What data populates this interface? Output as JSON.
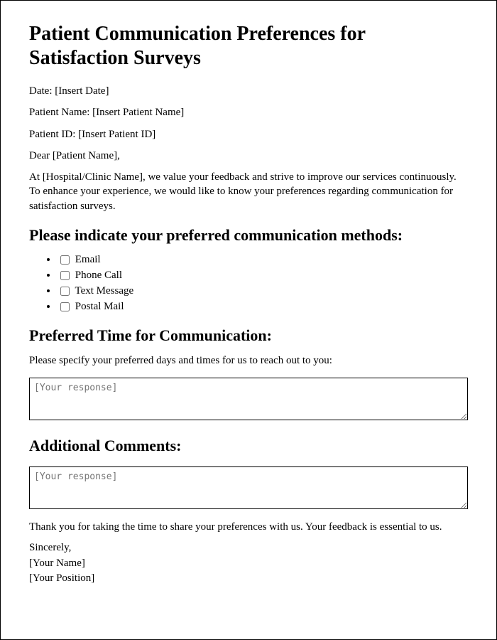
{
  "title": "Patient Communication Preferences for Satisfaction Surveys",
  "date_line": "Date: [Insert Date]",
  "patient_name_line": "Patient Name: [Insert Patient Name]",
  "patient_id_line": "Patient ID: [Insert Patient ID]",
  "salutation": "Dear [Patient Name],",
  "intro": "At [Hospital/Clinic Name], we value your feedback and strive to improve our services continuously. To enhance your experience, we would like to know your preferences regarding communication for satisfaction surveys.",
  "methods_heading": "Please indicate your preferred communication methods:",
  "methods": {
    "email": "Email",
    "phone": "Phone Call",
    "text": "Text Message",
    "postal": "Postal Mail"
  },
  "time_heading": "Preferred Time for Communication:",
  "time_prompt": "Please specify your preferred days and times for us to reach out to you:",
  "textarea_placeholder": "[Your response]",
  "comments_heading": "Additional Comments:",
  "thankyou": "Thank you for taking the time to share your preferences with us. Your feedback is essential to us.",
  "closing": "Sincerely,",
  "your_name": "[Your Name]",
  "your_position": "[Your Position]"
}
